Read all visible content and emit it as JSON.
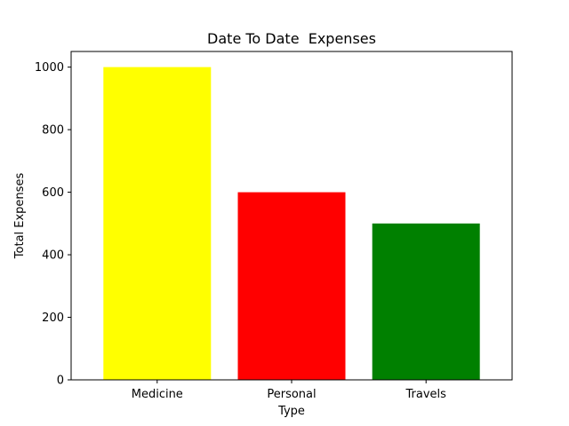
{
  "chart_data": {
    "type": "bar",
    "title": "Date To Date  Expenses",
    "xlabel": "Type",
    "ylabel": "Total Expenses",
    "categories": [
      "Medicine",
      "Personal",
      "Travels"
    ],
    "values": [
      1000,
      600,
      500
    ],
    "colors": [
      "#ffff00",
      "#ff0000",
      "#008000"
    ],
    "ylim": [
      0,
      1050
    ],
    "yticks": [
      0,
      200,
      400,
      600,
      800,
      1000
    ],
    "grid": false,
    "legend": "none"
  }
}
